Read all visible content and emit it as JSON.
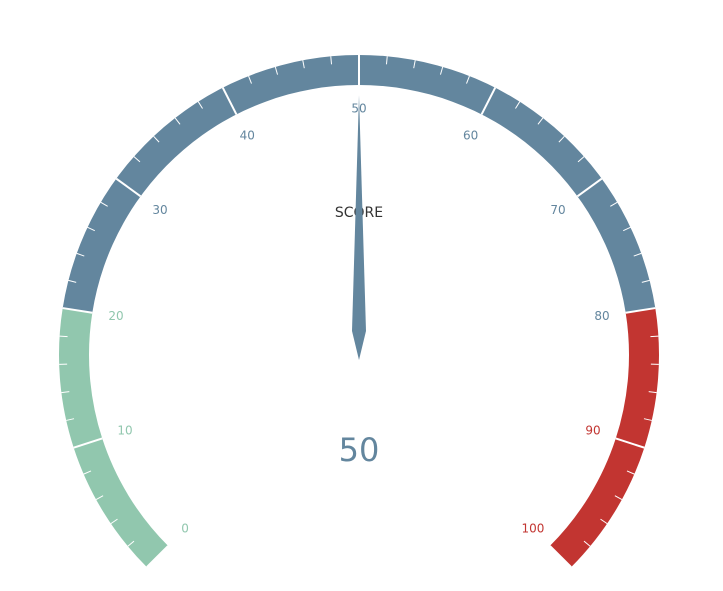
{
  "chart_data": {
    "type": "gauge",
    "title": "SCORE",
    "value": 50,
    "value_label": "50",
    "min": 0,
    "max": 100,
    "start_angle_deg": 225,
    "end_angle_deg": -45,
    "major_ticks": [
      0,
      10,
      20,
      30,
      40,
      50,
      60,
      70,
      80,
      90,
      100
    ],
    "major_tick_labels": [
      "0",
      "10",
      "20",
      "30",
      "40",
      "50",
      "60",
      "70",
      "80",
      "90",
      "100"
    ],
    "minor_ticks_per_major": 5,
    "bands": [
      {
        "from": 0,
        "to": 20,
        "color": "#91c7ae"
      },
      {
        "from": 20,
        "to": 80,
        "color": "#63869e"
      },
      {
        "from": 80,
        "to": 100,
        "color": "#c23531"
      }
    ],
    "pointer_color": "#63869e",
    "value_color": "#63869e"
  }
}
